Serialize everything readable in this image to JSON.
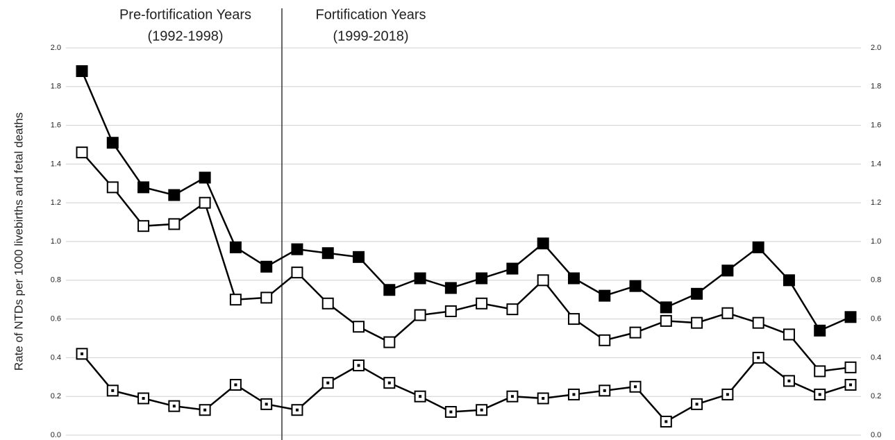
{
  "chart_data": {
    "type": "line",
    "ylabel": "Rate of NTDs per 1000 livebirths and fetal deaths",
    "annotations": [
      {
        "text": "Pre-fortification Years",
        "subtext": "(1992-1998)"
      },
      {
        "text": "Fortification Years",
        "subtext": "(1999-2018)"
      }
    ],
    "ylim": [
      0,
      2
    ],
    "yticks": [
      {
        "value": 0,
        "label": "0.0"
      },
      {
        "value": 0.2,
        "label": "0.2"
      },
      {
        "value": 0.4,
        "label": "0.4"
      },
      {
        "value": 0.6,
        "label": "0.6"
      },
      {
        "value": 0.8,
        "label": "0.8"
      },
      {
        "value": 1,
        "label": "1.0"
      },
      {
        "value": 1.2,
        "label": "1.2"
      },
      {
        "value": 1.4,
        "label": "1.4"
      },
      {
        "value": 1.6,
        "label": "1.6"
      },
      {
        "value": 1.8,
        "label": "1.8"
      },
      {
        "value": 2,
        "label": "2.0"
      }
    ],
    "y2lim": [
      0,
      2
    ],
    "y2ticks": [
      {
        "value": 0,
        "label": "0.0"
      },
      {
        "value": 0.2,
        "label": "0.2"
      },
      {
        "value": 0.4,
        "label": "0.4"
      },
      {
        "value": 0.6,
        "label": "0.6"
      },
      {
        "value": 0.8,
        "label": "0.8"
      },
      {
        "value": 1,
        "label": "1.0"
      },
      {
        "value": 1.2,
        "label": "1.2"
      },
      {
        "value": 1.4,
        "label": "1.4"
      },
      {
        "value": 1.6,
        "label": "1.6"
      },
      {
        "value": 1.8,
        "label": "1.8"
      },
      {
        "value": 2,
        "label": "2.0"
      }
    ],
    "grid": true,
    "series": [
      {
        "color": "#000000",
        "marker": "filled",
        "values": [
          1.88,
          1.51,
          1.28,
          1.24,
          1.33,
          0.97,
          0.87,
          0.96,
          0.94,
          0.92,
          0.75,
          0.81,
          0.76,
          0.81,
          0.86,
          0.99,
          0.81,
          0.72,
          0.77,
          0.66,
          0.73,
          0.85,
          0.97,
          0.8,
          0.54,
          0.61
        ]
      },
      {
        "color": "#000000",
        "marker": "open",
        "values": [
          1.46,
          1.28,
          1.08,
          1.09,
          1.2,
          0.7,
          0.71,
          0.84,
          0.68,
          0.56,
          0.48,
          0.62,
          0.64,
          0.68,
          0.65,
          0.8,
          0.6,
          0.49,
          0.53,
          0.59,
          0.58,
          0.63,
          0.58,
          0.52,
          0.33,
          0.35
        ]
      },
      {
        "color": "#000000",
        "marker": "dotted",
        "values": [
          0.42,
          0.23,
          0.19,
          0.15,
          0.13,
          0.26,
          0.16,
          0.13,
          0.27,
          0.36,
          0.27,
          0.2,
          0.12,
          0.13,
          0.2,
          0.19,
          0.21,
          0.23,
          0.25,
          0.07,
          0.16,
          0.21,
          0.4,
          0.28,
          0.21,
          0.26
        ]
      }
    ]
  }
}
